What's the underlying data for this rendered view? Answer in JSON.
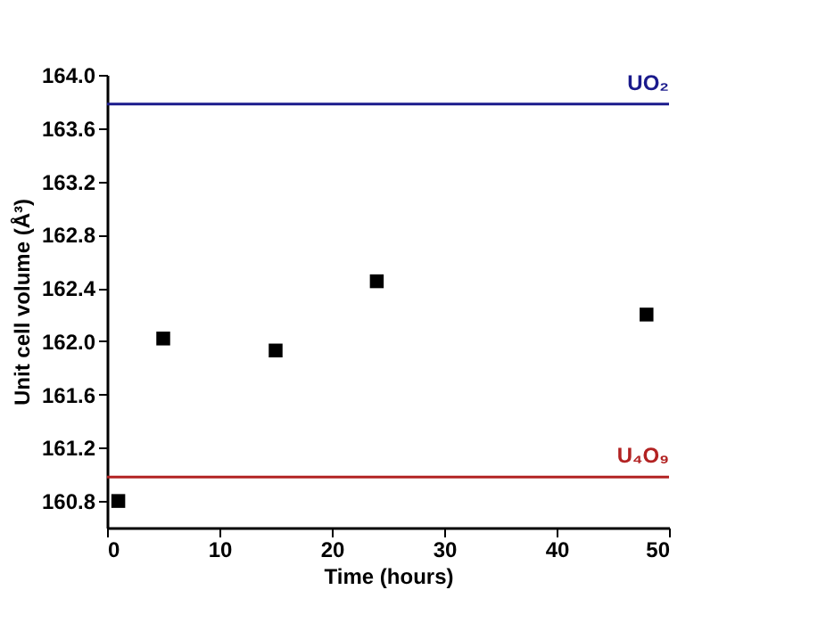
{
  "chart_data": {
    "type": "scatter",
    "xlabel": "Time (hours)",
    "ylabel": "Unit cell volume (Å³)",
    "x": [
      1,
      5,
      15,
      24,
      48
    ],
    "series": [
      {
        "color": "#000000",
        "values": [
          160.8,
          162.02,
          161.93,
          162.45,
          162.2
        ]
      }
    ],
    "marker": "square",
    "xlim": [
      0,
      50
    ],
    "xticks": [
      0,
      10,
      20,
      30,
      40,
      50
    ],
    "ylim": [
      160.6,
      164.0
    ],
    "yticks": [
      {
        "value": 160.8,
        "label": "160.8"
      },
      {
        "value": 161.2,
        "label": "161.2"
      },
      {
        "value": 161.6,
        "label": "161.6"
      },
      {
        "value": 162.0,
        "label": "162.0"
      },
      {
        "value": 162.4,
        "label": "162.4"
      },
      {
        "value": 162.8,
        "label": "162.8"
      },
      {
        "value": 163.2,
        "label": "163.2"
      },
      {
        "value": 163.6,
        "label": "163.6"
      },
      {
        "value": 164.0,
        "label": "164.0"
      }
    ],
    "ref_lines": [
      {
        "axis": "y",
        "value": 163.78,
        "label": "UO₂",
        "color": "#1a1a8c"
      },
      {
        "axis": "y",
        "value": 160.98,
        "label": "U₄O₉",
        "color": "#b22222"
      }
    ],
    "grid": false
  }
}
